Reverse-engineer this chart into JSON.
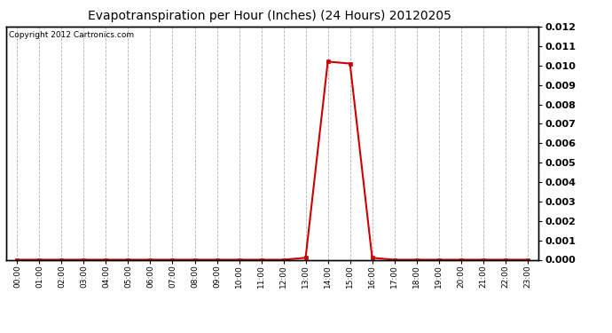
{
  "title": "Evapotranspiration per Hour (Inches) (24 Hours) 20120205",
  "copyright_text": "Copyright 2012 Cartronics.com",
  "line_color": "#cc0000",
  "bg_color": "#ffffff",
  "plot_bg_color": "#ffffff",
  "grid_color": "#b0b0b0",
  "x_labels": [
    "00:00",
    "01:00",
    "02:00",
    "03:00",
    "04:00",
    "05:00",
    "06:00",
    "07:00",
    "08:00",
    "09:00",
    "10:00",
    "11:00",
    "12:00",
    "13:00",
    "14:00",
    "15:00",
    "16:00",
    "17:00",
    "18:00",
    "19:00",
    "20:00",
    "21:00",
    "22:00",
    "23:00"
  ],
  "hours": [
    0,
    1,
    2,
    3,
    4,
    5,
    6,
    7,
    8,
    9,
    10,
    11,
    12,
    13,
    14,
    15,
    16,
    17,
    18,
    19,
    20,
    21,
    22,
    23
  ],
  "values": [
    0.0,
    0.0,
    0.0,
    0.0,
    0.0,
    0.0,
    0.0,
    0.0,
    0.0,
    0.0,
    0.0,
    0.0,
    0.0,
    0.0001,
    0.0102,
    0.0101,
    0.0001,
    0.0,
    0.0,
    0.0,
    0.0,
    0.0,
    0.0,
    0.0
  ],
  "ylim": [
    0.0,
    0.012
  ],
  "yticks": [
    0.0,
    0.001,
    0.002,
    0.003,
    0.004,
    0.005,
    0.006,
    0.007,
    0.008,
    0.009,
    0.01,
    0.011,
    0.012
  ],
  "marker": "s",
  "marker_size": 2.5,
  "line_width": 1.5,
  "title_fontsize": 10,
  "copyright_fontsize": 6.5,
  "tick_fontsize": 6.5,
  "ytick_fontsize": 8
}
